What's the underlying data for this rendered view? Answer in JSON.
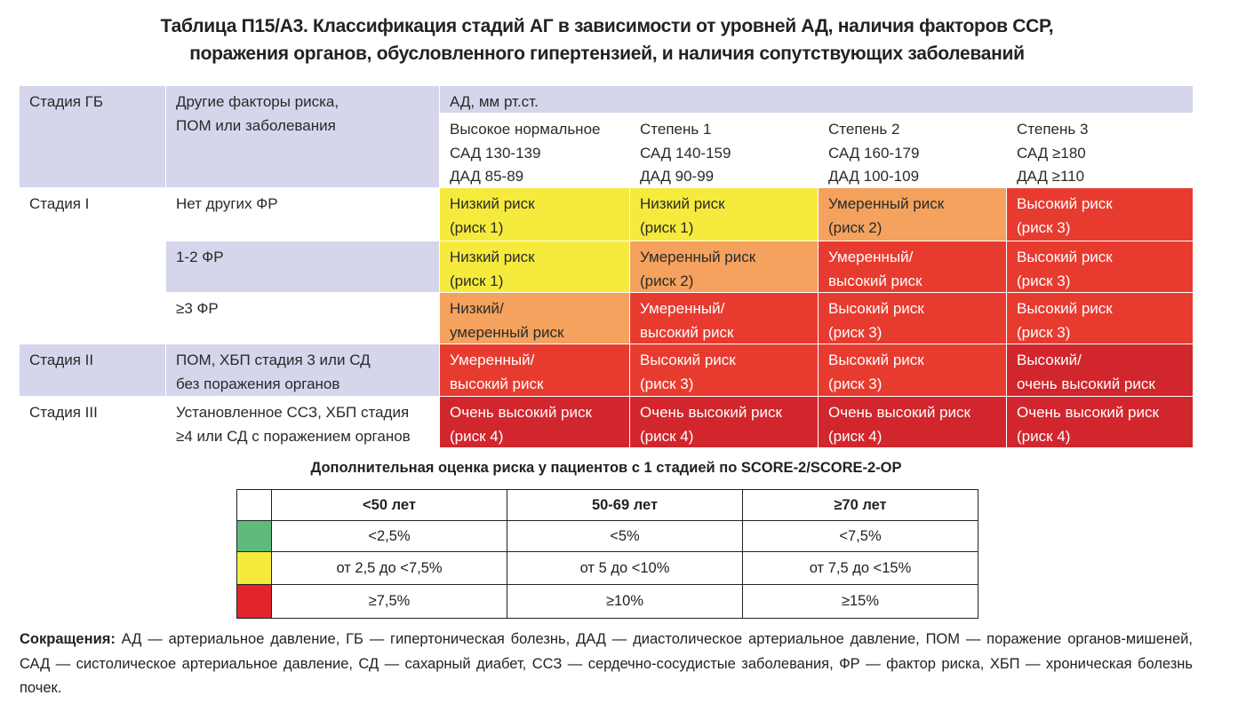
{
  "title": {
    "lines": [
      "Таблица П15/А3. Классификация стадий АГ в зависимости от уровней АД, наличия факторов ССР,",
      "поражения органов, обусловленного гипертензией, и наличия сопутствующих заболеваний"
    ]
  },
  "main_table": {
    "header": {
      "stage": "Стадия ГБ",
      "factors": "Другие факторы риска,\nПОМ или заболевания",
      "bp": "АД, мм рт.ст.",
      "columns": [
        "Высокое нормальное\nСАД 130-139\nДАД 85-89",
        "Степень 1\nСАД 140-159\nДАД 90-99",
        "Степень 2\nСАД 160-179\nДАД 100-109",
        "Степень 3\nСАД ≥180\nДАД ≥110"
      ]
    },
    "stages": [
      {
        "label": "Стадия I",
        "rows": [
          {
            "factor": "Нет других ФР",
            "cells": [
              {
                "text": "Низкий риск\n(риск 1)",
                "color": "#f6eb3c"
              },
              {
                "text": "Низкий риск\n(риск 1)",
                "color": "#f6eb3c"
              },
              {
                "text": "Умеренный риск\n(риск 2)",
                "color": "#f4a25d"
              },
              {
                "text": "Высокий риск\n(риск 3)",
                "color": "#e83b30"
              }
            ]
          },
          {
            "factor": "1-2 ФР",
            "cells": [
              {
                "text": "Низкий риск\n(риск 1)",
                "color": "#f6eb3c"
              },
              {
                "text": "Умеренный риск\n(риск 2)",
                "color": "#f4a25d"
              },
              {
                "text": "Умеренный/\nвысокий риск",
                "color": "#e83b30"
              },
              {
                "text": "Высокий риск\n(риск 3)",
                "color": "#e83b30"
              }
            ]
          },
          {
            "factor": "≥3 ФР",
            "cells": [
              {
                "text": "Низкий/\nумеренный риск",
                "color": "#f4a25d"
              },
              {
                "text": "Умеренный/\nвысокий риск",
                "color": "#e83b30"
              },
              {
                "text": "Высокий риск\n(риск 3)",
                "color": "#e83b30"
              },
              {
                "text": "Высокий риск\n(риск 3)",
                "color": "#e83b30"
              }
            ]
          }
        ]
      },
      {
        "label": "Стадия II",
        "rows": [
          {
            "factor": "ПОМ, ХБП стадия 3 или СД\nбез поражения органов",
            "cells": [
              {
                "text": "Умеренный/\nвысокий риск",
                "color": "#e83b30"
              },
              {
                "text": "Высокий риск\n(риск 3)",
                "color": "#e83b30"
              },
              {
                "text": "Высокий риск\n(риск 3)",
                "color": "#e83b30"
              },
              {
                "text": "Высокий/\nочень высокий риск",
                "color": "#d1262d"
              }
            ]
          }
        ]
      },
      {
        "label": "Стадия III",
        "rows": [
          {
            "factor": "Установленное ССЗ, ХБП стадия\n≥4 или СД с поражением органов",
            "cells": [
              {
                "text": "Очень высокий риск\n(риск 4)",
                "color": "#d1262d"
              },
              {
                "text": "Очень высокий риск\n(риск 4)",
                "color": "#d1262d"
              },
              {
                "text": "Очень высокий риск\n(риск 4)",
                "color": "#d1262d"
              },
              {
                "text": "Очень высокий риск\n(риск 4)",
                "color": "#d1262d"
              }
            ]
          }
        ]
      }
    ]
  },
  "score_table": {
    "title": "Дополнительная оценка риска у пациентов с 1 стадией по SCORE-2/SCORE-2-OP",
    "headers": [
      "<50 лет",
      "50-69 лет",
      "≥70 лет"
    ],
    "rows": [
      {
        "color": "#5fbb7c",
        "values": [
          "<2,5%",
          "<5%",
          "<7,5%"
        ]
      },
      {
        "color": "#f6eb3c",
        "values": [
          "от 2,5 до <7,5%",
          "от 5 до <10%",
          "от 7,5 до <15%"
        ]
      },
      {
        "color": "#e3242b",
        "values": [
          "≥7,5%",
          "≥10%",
          "≥15%"
        ]
      }
    ]
  },
  "footnote": {
    "label": "Сокращения:",
    "text": " АД — артериальное давление, ГБ — гипертоническая болезнь, ДАД — диастолическое артериальное давление, ПОМ — поражение органов-мишеней, САД — систолическое артериальное давление, СД — сахарный диабет, ССЗ — сердечно-сосудистые заболевания, ФР — фактор риска, ХБП — хроническая болезнь почек."
  }
}
